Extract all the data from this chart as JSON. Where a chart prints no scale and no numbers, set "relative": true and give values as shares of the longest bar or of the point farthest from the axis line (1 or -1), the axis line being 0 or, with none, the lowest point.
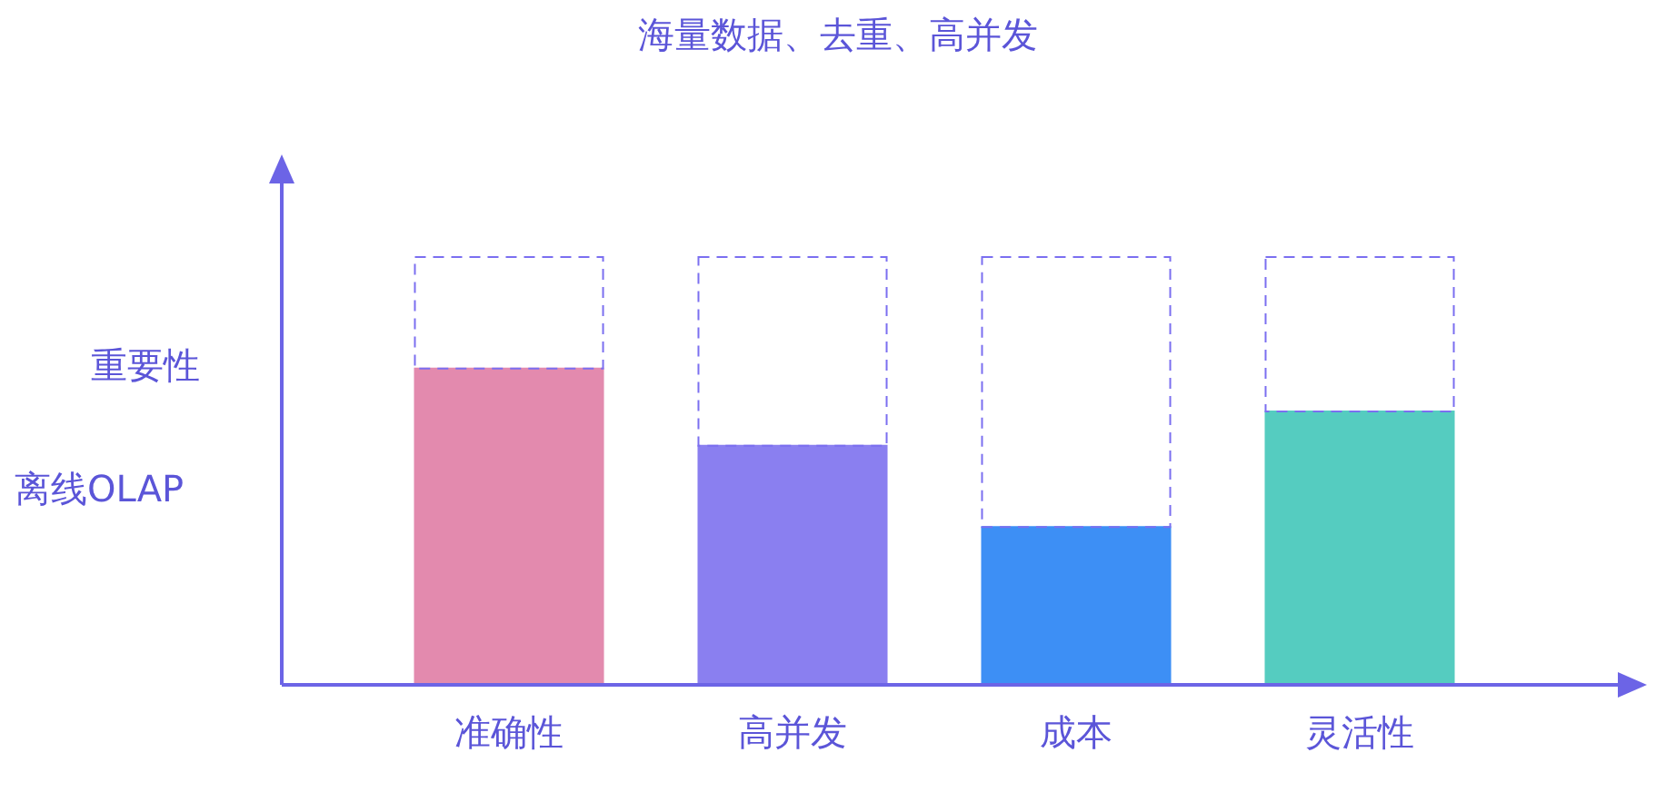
{
  "chart_data": {
    "type": "bar",
    "title": "海量数据、去重、高并发",
    "ylabel": "重要性",
    "annotations": [
      "离线OLAP"
    ],
    "categories": [
      "准确性",
      "高并发",
      "成本",
      "灵活性"
    ],
    "relative": true,
    "stacked": true,
    "grid": false,
    "legend": false,
    "series": [
      {
        "colors": [
          "#e38aae",
          "#8a7ff0",
          "#3d8ff5",
          "#55ccc0"
        ],
        "values": [
          0.74,
          0.56,
          0.37,
          0.64
        ]
      },
      {
        "color": "#7b6ff0",
        "line_style": "dashed",
        "values": [
          0.26,
          0.44,
          0.63,
          0.36
        ]
      }
    ]
  }
}
